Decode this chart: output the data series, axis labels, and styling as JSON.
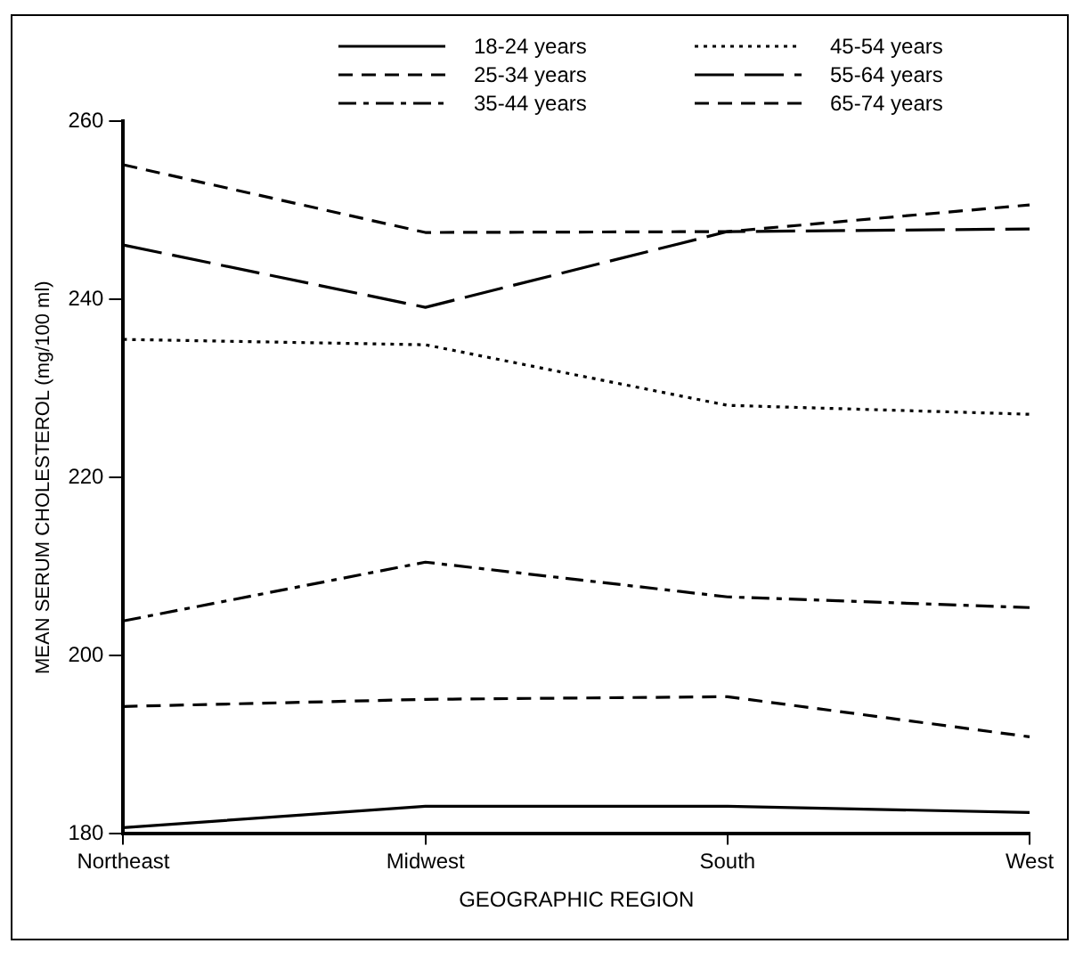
{
  "chart_data": {
    "type": "line",
    "xlabel": "GEOGRAPHIC REGION",
    "ylabel": "MEAN SERUM CHOLESTEROL (mg/100 ml)",
    "categories": [
      "Northeast",
      "Midwest",
      "South",
      "West"
    ],
    "ylim": [
      180,
      260
    ],
    "yticks": [
      180,
      200,
      220,
      240,
      260
    ],
    "grid": false,
    "legend": "top",
    "marker": "none",
    "series": [
      {
        "name": "18-24 years",
        "color": "#000000",
        "line_style": "solid",
        "values": [
          180.7,
          183.1,
          183.1,
          182.4
        ]
      },
      {
        "name": "25-34 years",
        "color": "#000000",
        "line_style": "dashed",
        "values": [
          194.3,
          195.1,
          195.4,
          190.9
        ]
      },
      {
        "name": "35-44 years",
        "color": "#000000",
        "line_style": "dashdot",
        "values": [
          203.9,
          210.5,
          206.6,
          205.4
        ]
      },
      {
        "name": "45-54 years",
        "color": "#000000",
        "line_style": "dotted",
        "values": [
          235.5,
          234.9,
          228.1,
          227.1
        ]
      },
      {
        "name": "55-64 years",
        "color": "#000000",
        "line_style": "longdash",
        "values": [
          246.1,
          239.1,
          247.6,
          247.9
        ]
      },
      {
        "name": "65-74 years",
        "color": "#000000",
        "line_style": "dashed",
        "values": [
          255.1,
          247.5,
          247.6,
          250.6
        ]
      }
    ]
  }
}
